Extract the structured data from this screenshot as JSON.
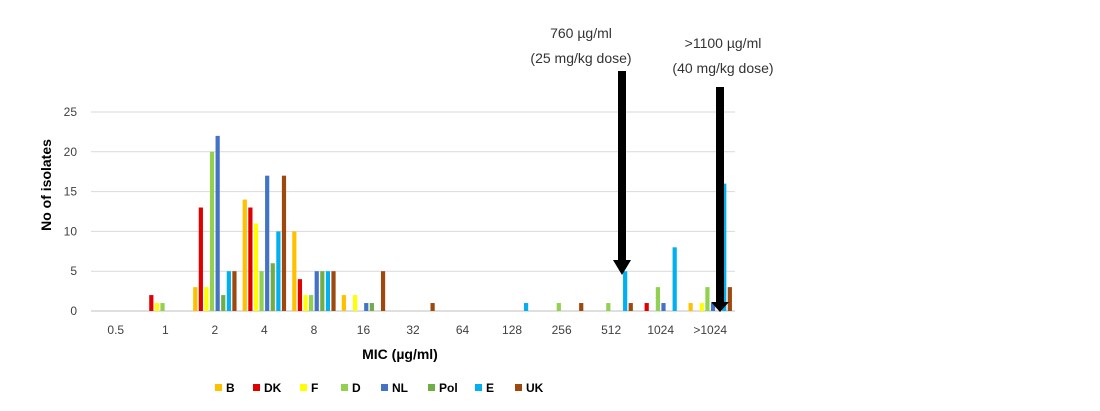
{
  "chart_data": {
    "type": "bar",
    "title": "",
    "xlabel": "MIC (µg/ml)",
    "ylabel": "No of isolates",
    "ylim": [
      0,
      25
    ],
    "yticks": [
      0,
      5,
      10,
      15,
      20,
      25
    ],
    "grid": true,
    "legend_position": "bottom",
    "categories": [
      "0.5",
      "1",
      "2",
      "4",
      "8",
      "16",
      "32",
      "64",
      "128",
      "256",
      "512",
      "1024",
      ">1024"
    ],
    "series": [
      {
        "name": "B",
        "color": "#FFC000",
        "values": [
          0,
          0,
          3,
          14,
          10,
          2,
          0,
          0,
          0,
          0,
          0,
          0,
          1
        ]
      },
      {
        "name": "DK",
        "color": "#E00000",
        "values": [
          0,
          2,
          13,
          13,
          4,
          0,
          0,
          0,
          0,
          0,
          0,
          1,
          0
        ]
      },
      {
        "name": "F",
        "color": "#FFFF00",
        "values": [
          0,
          1,
          3,
          11,
          2,
          2,
          0,
          0,
          0,
          0,
          0,
          0,
          1
        ]
      },
      {
        "name": "D",
        "color": "#92D050",
        "values": [
          0,
          1,
          20,
          5,
          2,
          0,
          0,
          0,
          0,
          1,
          1,
          3,
          3
        ]
      },
      {
        "name": "NL",
        "color": "#4472C4",
        "values": [
          0,
          0,
          22,
          17,
          5,
          1,
          0,
          0,
          0,
          0,
          0,
          1,
          1
        ]
      },
      {
        "name": "Pol",
        "color": "#70AD47",
        "values": [
          0,
          0,
          2,
          6,
          5,
          1,
          0,
          0,
          0,
          0,
          0,
          0,
          0
        ]
      },
      {
        "name": "E",
        "color": "#00B0F0",
        "values": [
          0,
          0,
          5,
          10,
          5,
          0,
          0,
          0,
          1,
          0,
          5,
          8,
          16
        ]
      },
      {
        "name": "UK",
        "color": "#9E480E",
        "values": [
          0,
          0,
          5,
          17,
          5,
          5,
          1,
          0,
          0,
          1,
          1,
          0,
          3
        ]
      }
    ],
    "annotations": [
      {
        "name": "annotation-760",
        "line1": "760 µg/ml",
        "line2": "(25 mg/kg dose)",
        "arrow_at": "between 512 and 1024"
      },
      {
        "name": "annotation-1100",
        "line1": ">1100 µg/ml",
        "line2": "(40 mg/kg dose)",
        "arrow_at": "right of >1024"
      }
    ]
  }
}
